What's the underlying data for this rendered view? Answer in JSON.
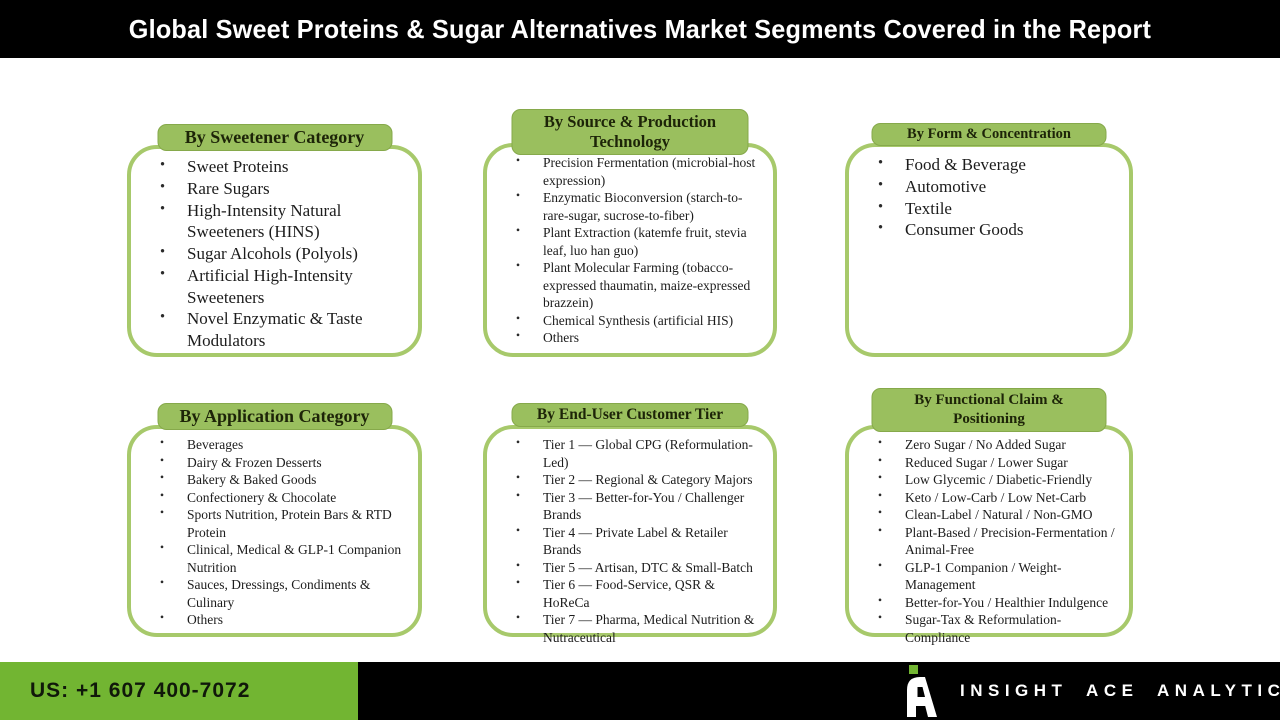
{
  "header": {
    "title": "Global Sweet Proteins & Sugar Alternatives Market Segments Covered in the Report"
  },
  "boxes": [
    {
      "label": "By Sweetener Category",
      "items": [
        "Sweet Proteins",
        "Rare Sugars",
        "High-Intensity Natural Sweeteners (HINS)",
        "Sugar Alcohols (Polyols)",
        "Artificial High-Intensity Sweeteners",
        "Novel Enzymatic & Taste Modulators"
      ]
    },
    {
      "label": "By Source & Production Technology",
      "items": [
        "Precision Fermentation (microbial-host expression)",
        "Enzymatic Bioconversion (starch-to-rare-sugar, sucrose-to-fiber)",
        "Plant Extraction (katemfe fruit, stevia leaf, luo han guo)",
        "Plant Molecular Farming (tobacco-expressed thaumatin, maize-expressed brazzein)",
        "Chemical Synthesis (artificial HIS)",
        "Others"
      ]
    },
    {
      "label": "By Form & Concentration",
      "items": [
        "Food & Beverage",
        "Automotive",
        "Textile",
        "Consumer Goods"
      ]
    },
    {
      "label": "By Application Category",
      "items": [
        "Beverages",
        "Dairy & Frozen Desserts",
        "Bakery & Baked Goods",
        "Confectionery & Chocolate",
        "Sports Nutrition, Protein Bars & RTD Protein",
        "Clinical, Medical & GLP-1 Companion Nutrition",
        "Sauces, Dressings, Condiments & Culinary",
        "Others"
      ]
    },
    {
      "label": "By End-User Customer Tier",
      "items": [
        "Tier 1 — Global CPG (Reformulation-Led)",
        "Tier 2 — Regional & Category Majors",
        "Tier 3 — Better-for-You / Challenger Brands",
        "Tier 4 — Private Label & Retailer Brands",
        "Tier 5 — Artisan, DTC & Small-Batch",
        "Tier 6 — Food-Service, QSR & HoReCa",
        "Tier 7 — Pharma, Medical Nutrition & Nutraceutical"
      ]
    },
    {
      "label": "By Functional Claim & Positioning",
      "items": [
        "Zero Sugar / No Added Sugar",
        "Reduced Sugar / Lower Sugar",
        "Low Glycemic / Diabetic-Friendly",
        "Keto / Low-Carb / Low Net-Carb",
        "Clean-Label / Natural / Non-GMO",
        "Plant-Based / Precision-Fermentation / Animal-Free",
        "GLP-1 Companion / Weight-Management",
        "Better-for-You / Healthier Indulgence",
        "Sugar-Tax & Reformulation-Compliance"
      ]
    }
  ],
  "footer": {
    "phone": "US: +1 607 400-7072",
    "brand": "INSIGHT ACE ANALYTIC"
  },
  "icons": {
    "brand_logo": "insight-ace-monogram-A-with-green-square"
  },
  "colors": {
    "header_bg": "#000000",
    "box_border": "#a7c96b",
    "label_bg": "#9abf5e",
    "footer_green": "#72b532",
    "brand_text": "#ffffff"
  }
}
